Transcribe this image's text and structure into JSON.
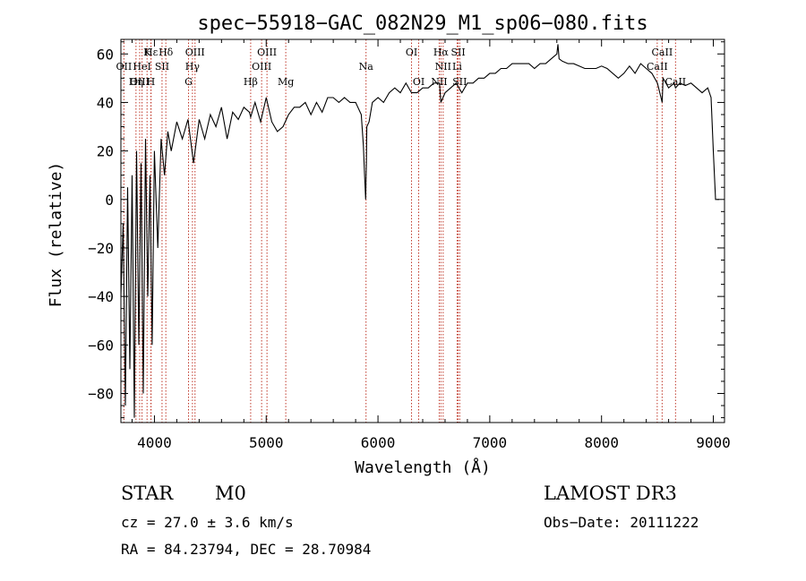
{
  "chart_data": {
    "type": "line",
    "title": "spec−55918−GAC_082N29_M1_sp06−080.fits",
    "xlabel": "Wavelength (Å)",
    "ylabel": "Flux (relative)",
    "xlim": [
      3700,
      9100
    ],
    "ylim": [
      -92,
      66
    ],
    "xticks": [
      4000,
      5000,
      6000,
      7000,
      8000,
      9000
    ],
    "yticks": [
      -80,
      -60,
      -40,
      -20,
      0,
      20,
      40,
      60
    ],
    "xtick_labels": [
      "4000",
      "5000",
      "6000",
      "7000",
      "8000",
      "9000"
    ],
    "ytick_labels": [
      "−80",
      "−60",
      "−40",
      "−20",
      "0",
      "20",
      "40",
      "60"
    ],
    "series": [
      {
        "name": "flux",
        "x": [
          3700,
          3720,
          3740,
          3760,
          3780,
          3800,
          3820,
          3840,
          3860,
          3880,
          3900,
          3920,
          3940,
          3960,
          3980,
          4000,
          4030,
          4060,
          4090,
          4120,
          4150,
          4200,
          4250,
          4300,
          4350,
          4400,
          4450,
          4500,
          4550,
          4600,
          4650,
          4700,
          4750,
          4800,
          4850,
          4861,
          4900,
          4950,
          5000,
          5050,
          5100,
          5150,
          5200,
          5250,
          5300,
          5350,
          5400,
          5450,
          5500,
          5550,
          5600,
          5650,
          5700,
          5750,
          5800,
          5850,
          5870,
          5880,
          5890,
          5896,
          5900,
          5920,
          5950,
          6000,
          6050,
          6100,
          6150,
          6200,
          6250,
          6300,
          6350,
          6400,
          6450,
          6500,
          6550,
          6563,
          6600,
          6650,
          6700,
          6750,
          6800,
          6850,
          6900,
          6950,
          7000,
          7050,
          7100,
          7150,
          7200,
          7250,
          7300,
          7350,
          7400,
          7450,
          7500,
          7550,
          7600,
          7610,
          7620,
          7650,
          7700,
          7750,
          7800,
          7850,
          7900,
          7950,
          8000,
          8050,
          8100,
          8150,
          8200,
          8250,
          8300,
          8350,
          8400,
          8450,
          8500,
          8542,
          8550,
          8600,
          8650,
          8662,
          8700,
          8750,
          8800,
          8850,
          8900,
          8950,
          8980,
          9000,
          9020,
          9050
        ],
        "values": [
          -40,
          -10,
          -85,
          5,
          -70,
          10,
          -90,
          20,
          -60,
          15,
          -80,
          25,
          -40,
          10,
          -60,
          20,
          -20,
          25,
          10,
          28,
          20,
          32,
          25,
          33,
          15,
          33,
          25,
          35,
          30,
          38,
          25,
          36,
          33,
          38,
          36,
          34,
          40,
          32,
          42,
          32,
          28,
          30,
          35,
          38,
          38,
          40,
          35,
          40,
          36,
          42,
          42,
          40,
          42,
          40,
          40,
          35,
          22,
          10,
          0,
          15,
          30,
          32,
          40,
          42,
          40,
          44,
          46,
          44,
          48,
          44,
          44,
          46,
          46,
          48,
          48,
          40,
          44,
          46,
          48,
          44,
          48,
          48,
          50,
          50,
          52,
          52,
          54,
          54,
          56,
          56,
          56,
          56,
          54,
          56,
          56,
          58,
          60,
          64,
          58,
          57,
          56,
          56,
          55,
          54,
          54,
          54,
          55,
          54,
          52,
          50,
          52,
          55,
          52,
          56,
          54,
          52,
          48,
          40,
          50,
          46,
          48,
          46,
          48,
          47,
          48,
          46,
          44,
          46,
          42,
          20,
          0,
          0
        ]
      }
    ],
    "emission_lines": [
      {
        "name": "Hε",
        "wl": 3970,
        "row": 1
      },
      {
        "name": "K",
        "wl": 3934,
        "row": 1
      },
      {
        "name": "Hδ",
        "wl": 4102,
        "row": 1
      },
      {
        "name": "OIII",
        "wl": 4363,
        "row": 1
      },
      {
        "name": "OIII",
        "wl": 5007,
        "row": 1
      },
      {
        "name": "OI",
        "wl": 6300,
        "row": 1
      },
      {
        "name": "Hα",
        "wl": 6563,
        "row": 1
      },
      {
        "name": "SII",
        "wl": 6717,
        "row": 1
      },
      {
        "name": "CaII",
        "wl": 8542,
        "row": 1
      },
      {
        "name": "OII",
        "wl": 3727,
        "row": 2
      },
      {
        "name": "HeI",
        "wl": 3889,
        "row": 2
      },
      {
        "name": "SII",
        "wl": 4068,
        "row": 2
      },
      {
        "name": "Hγ",
        "wl": 4340,
        "row": 2
      },
      {
        "name": "OIII",
        "wl": 4959,
        "row": 2
      },
      {
        "name": "Na",
        "wl": 5893,
        "row": 2
      },
      {
        "name": "NII",
        "wl": 6583,
        "row": 2
      },
      {
        "name": "Li",
        "wl": 6708,
        "row": 2
      },
      {
        "name": "CaII",
        "wl": 8498,
        "row": 2
      },
      {
        "name": "OIII",
        "wl": 3868,
        "row": 3
      },
      {
        "name": "H",
        "wl": 3968,
        "row": 3
      },
      {
        "name": "Hη",
        "wl": 3835,
        "row": 3
      },
      {
        "name": "G",
        "wl": 4305,
        "row": 3
      },
      {
        "name": "Hβ",
        "wl": 4861,
        "row": 3
      },
      {
        "name": "Mg",
        "wl": 5175,
        "row": 3
      },
      {
        "name": "OI",
        "wl": 6364,
        "row": 3
      },
      {
        "name": "NII",
        "wl": 6548,
        "row": 3
      },
      {
        "name": "SII",
        "wl": 6731,
        "row": 3
      },
      {
        "name": "CaII",
        "wl": 8662,
        "row": 3
      }
    ]
  },
  "info": {
    "object_class": "STAR",
    "subclass": "M0",
    "survey": "LAMOST DR3",
    "cz": "cz = 27.0 ± 3.6 km/s",
    "obs_date": "Obs−Date: 20111222",
    "coords": "RA =  84.23794, DEC =  28.70984"
  }
}
